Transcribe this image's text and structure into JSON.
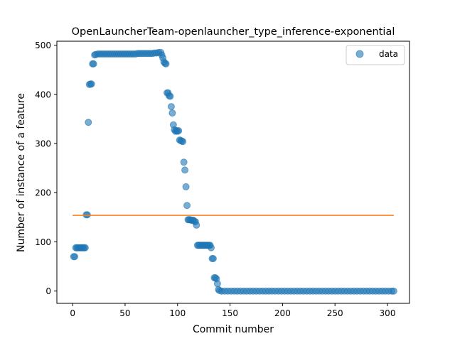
{
  "chart_data": {
    "type": "scatter",
    "title": "OpenLauncherTeam-openlauncher_type_inference-exponential",
    "xlabel": "Commit number",
    "ylabel": "Number of instance of a feature",
    "xlim": [
      -15,
      321
    ],
    "ylim": [
      -25,
      508
    ],
    "xticks": [
      0,
      50,
      100,
      150,
      200,
      250,
      300
    ],
    "yticks": [
      0,
      100,
      200,
      300,
      400,
      500
    ],
    "legend": {
      "placement": "top-right",
      "entries": [
        "data"
      ]
    },
    "colors": {
      "data": "#1f77b4",
      "fit": "#ff7f0e"
    },
    "series": [
      {
        "name": "data",
        "kind": "scatter",
        "points": [
          [
            1,
            70
          ],
          [
            2,
            70
          ],
          [
            3,
            88
          ],
          [
            4,
            88
          ],
          [
            5,
            88
          ],
          [
            6,
            88
          ],
          [
            7,
            88
          ],
          [
            8,
            88
          ],
          [
            9,
            88
          ],
          [
            10,
            88
          ],
          [
            11,
            88
          ],
          [
            12,
            88
          ],
          [
            13,
            155
          ],
          [
            14,
            155
          ],
          [
            15,
            343
          ],
          [
            16,
            420
          ],
          [
            17,
            421
          ],
          [
            18,
            421
          ],
          [
            19,
            462
          ],
          [
            20,
            462
          ],
          [
            21,
            480
          ],
          [
            22,
            481
          ],
          [
            24,
            482
          ],
          [
            26,
            482
          ],
          [
            28,
            482
          ],
          [
            30,
            482
          ],
          [
            32,
            482
          ],
          [
            34,
            482
          ],
          [
            36,
            482
          ],
          [
            38,
            482
          ],
          [
            40,
            482
          ],
          [
            42,
            482
          ],
          [
            44,
            482
          ],
          [
            46,
            482
          ],
          [
            48,
            482
          ],
          [
            50,
            482
          ],
          [
            52,
            482
          ],
          [
            54,
            482
          ],
          [
            56,
            482
          ],
          [
            58,
            482
          ],
          [
            60,
            482
          ],
          [
            62,
            483
          ],
          [
            64,
            483
          ],
          [
            66,
            483
          ],
          [
            68,
            483
          ],
          [
            70,
            483
          ],
          [
            72,
            483
          ],
          [
            74,
            483
          ],
          [
            76,
            483
          ],
          [
            78,
            484
          ],
          [
            80,
            484
          ],
          [
            82,
            485
          ],
          [
            84,
            485
          ],
          [
            85,
            480
          ],
          [
            86,
            474
          ],
          [
            87,
            466
          ],
          [
            88,
            463
          ],
          [
            89,
            462
          ],
          [
            90,
            403
          ],
          [
            91,
            403
          ],
          [
            92,
            397
          ],
          [
            93,
            396
          ],
          [
            94,
            375
          ],
          [
            95,
            362
          ],
          [
            96,
            338
          ],
          [
            97,
            328
          ],
          [
            98,
            325
          ],
          [
            99,
            326
          ],
          [
            100,
            325
          ],
          [
            101,
            326
          ],
          [
            102,
            307
          ],
          [
            103,
            306
          ],
          [
            104,
            305
          ],
          [
            105,
            304
          ],
          [
            106,
            262
          ],
          [
            107,
            246
          ],
          [
            108,
            212
          ],
          [
            109,
            174
          ],
          [
            110,
            145
          ],
          [
            111,
            145
          ],
          [
            112,
            145
          ],
          [
            113,
            144
          ],
          [
            114,
            144
          ],
          [
            115,
            144
          ],
          [
            116,
            142
          ],
          [
            117,
            141
          ],
          [
            118,
            134
          ],
          [
            119,
            93
          ],
          [
            120,
            93
          ],
          [
            121,
            93
          ],
          [
            122,
            93
          ],
          [
            123,
            93
          ],
          [
            124,
            93
          ],
          [
            125,
            93
          ],
          [
            126,
            93
          ],
          [
            127,
            93
          ],
          [
            128,
            93
          ],
          [
            129,
            93
          ],
          [
            130,
            93
          ],
          [
            131,
            93
          ],
          [
            132,
            88
          ],
          [
            133,
            66
          ],
          [
            134,
            66
          ],
          [
            135,
            27
          ],
          [
            136,
            27
          ],
          [
            137,
            25
          ],
          [
            138,
            15
          ],
          [
            139,
            3
          ],
          [
            140,
            1
          ],
          [
            142,
            0
          ],
          [
            145,
            0
          ],
          [
            148,
            0
          ],
          [
            151,
            0
          ],
          [
            154,
            0
          ],
          [
            157,
            0
          ],
          [
            160,
            0
          ],
          [
            163,
            0
          ],
          [
            166,
            0
          ],
          [
            169,
            0
          ],
          [
            172,
            0
          ],
          [
            175,
            0
          ],
          [
            178,
            0
          ],
          [
            181,
            0
          ],
          [
            184,
            0
          ],
          [
            187,
            0
          ],
          [
            190,
            0
          ],
          [
            193,
            0
          ],
          [
            196,
            0
          ],
          [
            199,
            0
          ],
          [
            202,
            0
          ],
          [
            205,
            0
          ],
          [
            208,
            0
          ],
          [
            211,
            0
          ],
          [
            214,
            0
          ],
          [
            217,
            0
          ],
          [
            220,
            0
          ],
          [
            223,
            0
          ],
          [
            226,
            0
          ],
          [
            229,
            0
          ],
          [
            232,
            0
          ],
          [
            235,
            0
          ],
          [
            238,
            0
          ],
          [
            241,
            0
          ],
          [
            244,
            0
          ],
          [
            247,
            0
          ],
          [
            250,
            0
          ],
          [
            253,
            0
          ],
          [
            256,
            0
          ],
          [
            259,
            0
          ],
          [
            262,
            0
          ],
          [
            265,
            0
          ],
          [
            268,
            0
          ],
          [
            271,
            0
          ],
          [
            274,
            0
          ],
          [
            277,
            0
          ],
          [
            280,
            0
          ],
          [
            283,
            0
          ],
          [
            286,
            0
          ],
          [
            289,
            0
          ],
          [
            292,
            0
          ],
          [
            295,
            0
          ],
          [
            298,
            0
          ],
          [
            301,
            0
          ],
          [
            304,
            0
          ],
          [
            306,
            0
          ]
        ]
      },
      {
        "name": "",
        "kind": "line",
        "points": [
          [
            0,
            154
          ],
          [
            306,
            154
          ]
        ]
      }
    ]
  }
}
